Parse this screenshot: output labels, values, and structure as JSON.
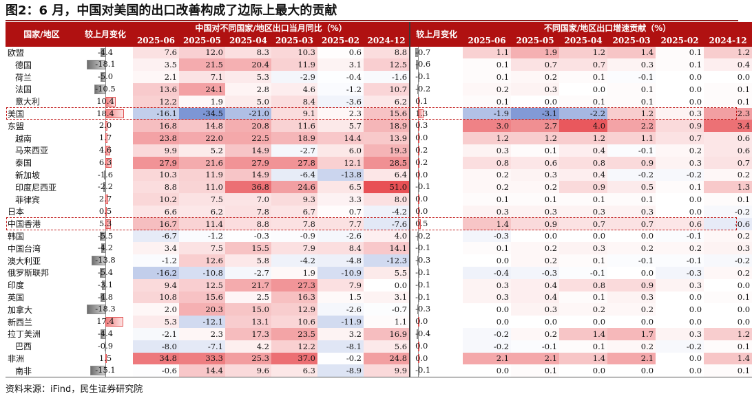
{
  "title": "图2：6 月，中国对美国的出口改善构成了边际上最大的贡献",
  "source": "资料来源：iFind，民生证券研究院",
  "colors": {
    "header": "#b01111",
    "positive": "#e8585a",
    "negative": "#5576c8",
    "bar_pos": "#f08080",
    "bar_neg": "#6e6e6e",
    "highlight": "#c21d1d"
  },
  "header": {
    "region": "国家/地区",
    "change": "较上月变化",
    "group1": "中国对不同国家/地区出口当月同比（%）",
    "change2": "较上月变化",
    "group2": "不同国家/地区出口增速贡献（%）",
    "months": [
      "2025-06",
      "2025-05",
      "2025-04",
      "2025-03",
      "2025-02",
      "2024-12"
    ]
  },
  "chart_data": {
    "type": "table",
    "title": "图2：6 月，中国对美国的出口改善构成了边际上最大的贡献",
    "columns": [
      "国家/地区",
      "较上月变化",
      "2025-06",
      "2025-05",
      "2025-04",
      "2025-03",
      "2025-02",
      "2024-12",
      "较上月变化",
      "2025-06",
      "2025-05",
      "2025-04",
      "2025-03",
      "2025-02",
      "2024-12"
    ],
    "highlighted_rows": [
      "美国",
      "中国香港"
    ],
    "rows": [
      {
        "region": "欧盟",
        "child": false,
        "chg": "-4.4",
        "yoy": [
          "7.6",
          "12.0",
          "8.3",
          "10.3",
          "0.6",
          "8.8"
        ],
        "chg2": "-0.7",
        "contrib": [
          "1.1",
          "1.9",
          "1.2",
          "1.4",
          "0.1",
          "1.2"
        ]
      },
      {
        "region": "德国",
        "child": true,
        "chg": "-18.1",
        "yoy": [
          "3.5",
          "21.5",
          "20.4",
          "11.9",
          "3.1",
          "12.5"
        ],
        "chg2": "-0.6",
        "contrib": [
          "0.1",
          "0.7",
          "0.7",
          "0.3",
          "0.1",
          "0.4"
        ]
      },
      {
        "region": "荷兰",
        "child": true,
        "chg": "-5.0",
        "yoy": [
          "2.1",
          "7.1",
          "5.3",
          "-2.9",
          "-0.4",
          "-1.6"
        ],
        "chg2": "-0.1",
        "contrib": [
          "0.1",
          "0.2",
          "0.1",
          "-0.1",
          "0.0",
          "0.0"
        ]
      },
      {
        "region": "法国",
        "child": true,
        "chg": "-10.5",
        "yoy": [
          "13.6",
          "24.1",
          "2.8",
          "4.6",
          "-1.2",
          "10.7"
        ],
        "chg2": "-0.2",
        "contrib": [
          "0.2",
          "0.3",
          "0.0",
          "0.1",
          "0.0",
          "0.1"
        ]
      },
      {
        "region": "意大利",
        "child": true,
        "chg": "10.4",
        "yoy": [
          "12.2",
          "1.9",
          "5.0",
          "8.4",
          "-3.6",
          "6.2"
        ],
        "chg2": "0.1",
        "contrib": [
          "0.1",
          "0.0",
          "0.1",
          "0.1",
          "0.0",
          "0.1"
        ]
      },
      {
        "region": "美国",
        "child": false,
        "chg": "18.4",
        "yoy": [
          "-16.1",
          "-34.5",
          "-21.0",
          "9.1",
          "2.3",
          "15.6"
        ],
        "chg2": "1.3",
        "contrib": [
          "-1.9",
          "-3.1",
          "-2.2",
          "1.2",
          "0.3",
          "2.3"
        ]
      },
      {
        "region": "东盟",
        "child": false,
        "chg": "2.0",
        "yoy": [
          "16.8",
          "14.8",
          "20.8",
          "11.6",
          "5.7",
          "18.9"
        ],
        "chg2": "0.3",
        "contrib": [
          "3.0",
          "2.7",
          "4.0",
          "2.2",
          "0.9",
          "3.4"
        ]
      },
      {
        "region": "越南",
        "child": true,
        "chg": "1.7",
        "yoy": [
          "23.8",
          "22.0",
          "22.5",
          "18.9",
          "14.4",
          "13.9"
        ],
        "chg2": "0.0",
        "contrib": [
          "1.2",
          "1.2",
          "1.2",
          "1.1",
          "0.7",
          "0.6"
        ]
      },
      {
        "region": "马来西亚",
        "child": true,
        "chg": "4.6",
        "yoy": [
          "9.9",
          "5.2",
          "14.9",
          "-2.7",
          "6.0",
          "19.3"
        ],
        "chg2": "0.2",
        "contrib": [
          "0.3",
          "0.1",
          "0.4",
          "-0.1",
          "0.2",
          "0.6"
        ]
      },
      {
        "region": "泰国",
        "child": true,
        "chg": "6.3",
        "yoy": [
          "27.9",
          "21.6",
          "27.9",
          "27.8",
          "12.1",
          "28.5"
        ],
        "chg2": "0.2",
        "contrib": [
          "0.8",
          "0.6",
          "0.8",
          "0.9",
          "0.3",
          "0.7"
        ]
      },
      {
        "region": "新加坡",
        "child": true,
        "chg": "-1.6",
        "yoy": [
          "10.3",
          "11.9",
          "14.9",
          "-6.4",
          "-13.8",
          "6.4"
        ],
        "chg2": "0.0",
        "contrib": [
          "0.2",
          "0.3",
          "0.4",
          "-0.2",
          "-0.2",
          "0.2"
        ]
      },
      {
        "region": "印度尼西亚",
        "child": true,
        "chg": "-2.2",
        "yoy": [
          "8.8",
          "11.0",
          "36.8",
          "24.6",
          "6.5",
          "51.0"
        ],
        "chg2": "-0.1",
        "contrib": [
          "0.2",
          "0.2",
          "0.9",
          "0.5",
          "0.1",
          "1.3"
        ]
      },
      {
        "region": "菲律宾",
        "child": true,
        "chg": "2.7",
        "yoy": [
          "10.2",
          "7.5",
          "7.0",
          "9.3",
          "3.3",
          "8.0"
        ],
        "chg2": "0.0",
        "contrib": [
          "0.1",
          "0.1",
          "0.1",
          "0.1",
          "0.0",
          "0.1"
        ]
      },
      {
        "region": "日本",
        "child": false,
        "chg": "0.5",
        "yoy": [
          "6.6",
          "6.2",
          "7.8",
          "6.7",
          "0.7",
          "-4.2"
        ],
        "chg2": "0.0",
        "contrib": [
          "0.3",
          "0.3",
          "0.3",
          "0.3",
          "0.0",
          "-0.2"
        ]
      },
      {
        "region": "中国香港",
        "child": false,
        "chg": "5.3",
        "yoy": [
          "16.7",
          "11.4",
          "8.8",
          "7.8",
          "7.7",
          "-7.6"
        ],
        "chg2": "0.5",
        "contrib": [
          "1.4",
          "0.9",
          "0.7",
          "0.7",
          "0.6",
          "-0.6"
        ]
      },
      {
        "region": "韩国",
        "child": false,
        "chg": "-5.5",
        "yoy": [
          "-6.7",
          "-1.2",
          "-0.3",
          "-0.9",
          "-2.6",
          "4.0"
        ],
        "chg2": "-0.2",
        "contrib": [
          "-0.3",
          "0.0",
          "0.0",
          "0.0",
          "-0.1",
          "0.2"
        ]
      },
      {
        "region": "中国台湾",
        "child": false,
        "chg": "-4.2",
        "yoy": [
          "3.4",
          "7.5",
          "15.5",
          "7.9",
          "8.4",
          "14.1"
        ],
        "chg2": "-0.1",
        "contrib": [
          "0.1",
          "0.2",
          "0.3",
          "0.2",
          "0.2",
          "0.3"
        ]
      },
      {
        "region": "澳大利亚",
        "child": false,
        "chg": "-13.8",
        "yoy": [
          "-1.2",
          "12.6",
          "5.8",
          "-4.2",
          "-4.8",
          "-12.3"
        ],
        "chg2": "-0.3",
        "contrib": [
          "0.0",
          "0.2",
          "0.1",
          "-0.1",
          "-0.1",
          "-0.2"
        ]
      },
      {
        "region": "俄罗斯联邦",
        "child": false,
        "chg": "-5.4",
        "yoy": [
          "-16.2",
          "-10.8",
          "-2.7",
          "1.9",
          "-10.9",
          "5.5"
        ],
        "chg2": "-0.1",
        "contrib": [
          "-0.4",
          "-0.3",
          "-0.1",
          "0.0",
          "-0.3",
          "0.2"
        ]
      },
      {
        "region": "印度",
        "child": false,
        "chg": "-3.1",
        "yoy": [
          "9.4",
          "12.5",
          "21.7",
          "27.3",
          "7.9",
          "0.0"
        ],
        "chg2": "-0.1",
        "contrib": [
          "0.3",
          "0.4",
          "0.8",
          "0.9",
          "0.3",
          "0.0"
        ]
      },
      {
        "region": "英国",
        "child": false,
        "chg": "-4.8",
        "yoy": [
          "10.8",
          "15.6",
          "2.5",
          "16.3",
          "1.5",
          "3.1"
        ],
        "chg2": "-0.1",
        "contrib": [
          "0.3",
          "0.4",
          "0.1",
          "0.3",
          "0.0",
          "0.1"
        ]
      },
      {
        "region": "加拿大",
        "child": false,
        "chg": "-18.3",
        "yoy": [
          "2.0",
          "20.3",
          "15.0",
          "12.9",
          "-2.6",
          "-0.7"
        ],
        "chg2": "-0.3",
        "contrib": [
          "0.0",
          "0.3",
          "0.2",
          "0.2",
          "0.0",
          "0.0"
        ]
      },
      {
        "region": "新西兰",
        "child": false,
        "chg": "17.4",
        "yoy": [
          "5.3",
          "-12.1",
          "13.1",
          "10.6",
          "-11.9",
          "1.1"
        ],
        "chg2": "0.0",
        "contrib": [
          "0.0",
          "0.0",
          "0.0",
          "0.0",
          "0.0",
          "0.0"
        ]
      },
      {
        "region": "拉丁美洲",
        "child": false,
        "chg": "-4.4",
        "yoy": [
          "-2.1",
          "2.3",
          "17.3",
          "23.5",
          "3.2",
          "16.9"
        ],
        "chg2": "-0.4",
        "contrib": [
          "-0.2",
          "0.2",
          "1.4",
          "1.7",
          "0.3",
          "1.2"
        ]
      },
      {
        "region": "巴西",
        "child": true,
        "chg": "-0.9",
        "yoy": [
          "-8.0",
          "-7.1",
          "4.2",
          "12.2",
          "-8.1",
          "5.6"
        ],
        "chg2": "0.0",
        "contrib": [
          "-0.2",
          "-0.1",
          "0.1",
          "0.2",
          "-0.2",
          "0.1"
        ]
      },
      {
        "region": "非洲",
        "child": false,
        "chg": "1.5",
        "yoy": [
          "34.8",
          "33.3",
          "25.3",
          "37.0",
          "-0.2",
          "24.8"
        ],
        "chg2": "0.0",
        "contrib": [
          "2.1",
          "2.1",
          "1.4",
          "2.1",
          "0.0",
          "1.4"
        ]
      },
      {
        "region": "南非",
        "child": true,
        "chg": "-15.1",
        "yoy": [
          "-0.6",
          "14.4",
          "9.6",
          "6.3",
          "-8.9",
          "9.9"
        ],
        "chg2": "-0.1",
        "contrib": [
          "0.0",
          "0.1",
          "0.0",
          "0.0",
          "0.0",
          "0.1"
        ]
      }
    ]
  }
}
